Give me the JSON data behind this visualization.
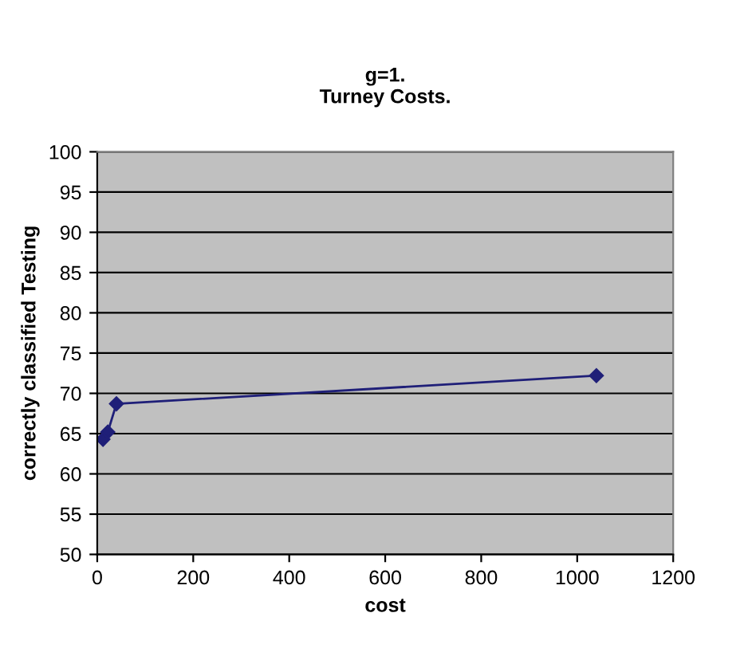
{
  "chart_data": {
    "type": "line",
    "title": "g=1.\nTurney Costs.",
    "xlabel": "cost",
    "ylabel": "correctly classified Testing",
    "x": [
      12,
      22,
      40,
      1040
    ],
    "series": [
      {
        "color": "#1f1f78",
        "values": [
          64.3,
          65.2,
          68.7,
          72.2
        ]
      }
    ],
    "xlim": [
      0,
      1200
    ],
    "xticks": [
      0,
      200,
      400,
      600,
      800,
      1000,
      1200
    ],
    "ylim": [
      50,
      100
    ],
    "yticks": [
      50,
      55,
      60,
      65,
      70,
      75,
      80,
      85,
      90,
      95,
      100
    ],
    "grid": "y",
    "marker": "diamond",
    "line_style": "solid"
  }
}
